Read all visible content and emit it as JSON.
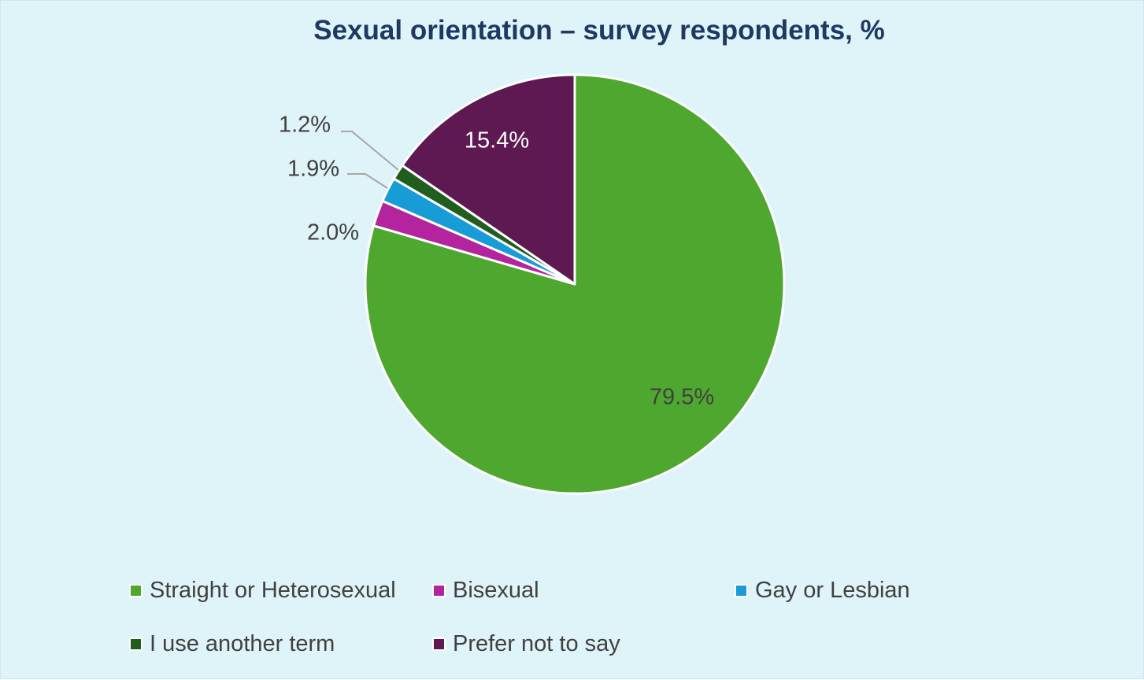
{
  "chart_data": {
    "type": "pie",
    "title": "Sexual orientation – survey respondents, %",
    "slices": [
      {
        "name": "Straight or Heterosexual",
        "value": 79.5,
        "label": "79.5%",
        "color": "#4ea72e"
      },
      {
        "name": "Bisexual",
        "value": 2.0,
        "label": "2.0%",
        "color": "#b4249e"
      },
      {
        "name": "Gay or Lesbian",
        "value": 1.9,
        "label": "1.9%",
        "color": "#179cd6"
      },
      {
        "name": "I use another term",
        "value": 1.2,
        "label": "1.2%",
        "color": "#215e1e"
      },
      {
        "name": "Prefer not to say",
        "value": 15.4,
        "label": "15.4%",
        "color": "#5e1953"
      }
    ],
    "legend_position": "bottom"
  }
}
